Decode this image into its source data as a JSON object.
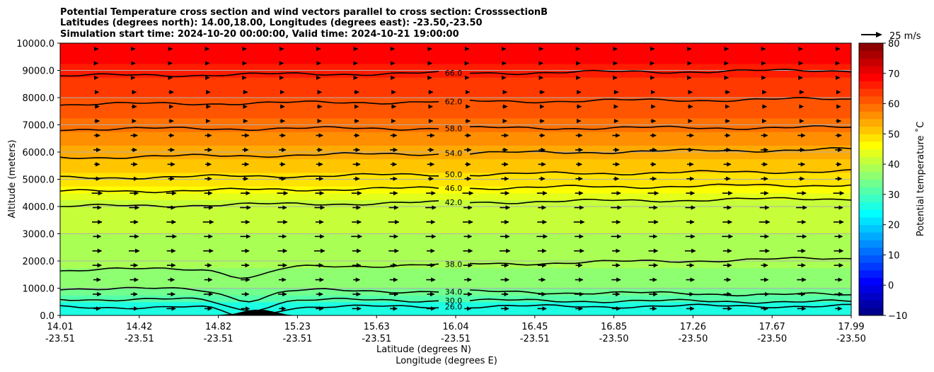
{
  "chart_data": {
    "type": "contour-cross-section",
    "title_lines": [
      "Potential Temperature cross section and wind vectors parallel to cross section: CrosssectionB",
      "Latitudes (degrees north): 14.00,18.00, Longitudes (degrees east): -23.50,-23.50",
      "Simulation start time: 2024-10-20 00:00:00, Valid time: 2024-10-21 19:00:00"
    ],
    "xlabel_line1": "Latitude (degrees N)",
    "xlabel_line2": "Longitude (degrees E)",
    "ylabel": "Altitude (meters)",
    "ylim": [
      0,
      10000
    ],
    "xlim": [
      14.01,
      17.99
    ],
    "y_ticks": [
      0,
      1000,
      2000,
      3000,
      4000,
      5000,
      6000,
      7000,
      8000,
      9000,
      10000
    ],
    "y_tick_labels": [
      "0.0",
      "1000.0",
      "2000.0",
      "3000.0",
      "4000.0",
      "5000.0",
      "6000.0",
      "7000.0",
      "8000.0",
      "9000.0",
      "10000.0"
    ],
    "x_ticks": [
      {
        "lat": "14.01",
        "lon": "-23.51"
      },
      {
        "lat": "14.42",
        "lon": "-23.51"
      },
      {
        "lat": "14.82",
        "lon": "-23.51"
      },
      {
        "lat": "15.23",
        "lon": "-23.51"
      },
      {
        "lat": "15.63",
        "lon": "-23.51"
      },
      {
        "lat": "16.04",
        "lon": "-23.51"
      },
      {
        "lat": "16.45",
        "lon": "-23.51"
      },
      {
        "lat": "16.85",
        "lon": "-23.50"
      },
      {
        "lat": "17.26",
        "lon": "-23.50"
      },
      {
        "lat": "17.67",
        "lon": "-23.50"
      },
      {
        "lat": "17.99",
        "lon": "-23.50"
      }
    ],
    "grid": true,
    "colorbar": {
      "label": "Potential temperature ˚C",
      "min": -10,
      "max": 80,
      "step": 2.5,
      "ticks": [
        -10,
        0,
        10,
        20,
        30,
        40,
        50,
        60,
        70,
        80
      ],
      "tick_labels": [
        "−10",
        "0",
        "10",
        "20",
        "30",
        "40",
        "50",
        "60",
        "70",
        "80"
      ],
      "colormap": "jet"
    },
    "quiver_key": {
      "label": "25 m/s"
    },
    "contour_levels": [
      {
        "level": 26.0,
        "label": "26.0",
        "alt_left": 300,
        "alt_right": 350
      },
      {
        "level": 30.0,
        "label": "30.0",
        "alt_left": 600,
        "alt_right": 500
      },
      {
        "level": 34.0,
        "label": "34.0",
        "alt_left": 1000,
        "alt_right": 750
      },
      {
        "level": 38.0,
        "label": "38.0",
        "alt_left": 1650,
        "alt_right": 2100
      },
      {
        "level": 42.0,
        "label": "42.0",
        "alt_left": 4000,
        "alt_right": 4300
      },
      {
        "level": 46.0,
        "label": "46.0",
        "alt_left": 4550,
        "alt_right": 4800
      },
      {
        "level": 50.0,
        "label": "50.0",
        "alt_left": 5050,
        "alt_right": 5300
      },
      {
        "level": 54.0,
        "label": "54.0",
        "alt_left": 5800,
        "alt_right": 6100
      },
      {
        "level": 58.0,
        "label": "58.0",
        "alt_left": 6850,
        "alt_right": 6900
      },
      {
        "level": 62.0,
        "label": "62.0",
        "alt_left": 7750,
        "alt_right": 7950
      },
      {
        "level": 66.0,
        "label": "66.0",
        "alt_left": 8800,
        "alt_right": 9000
      }
    ],
    "colors": {
      "terrain": "#000000",
      "grid": "#b0b0b0",
      "contour": "#000000"
    }
  }
}
